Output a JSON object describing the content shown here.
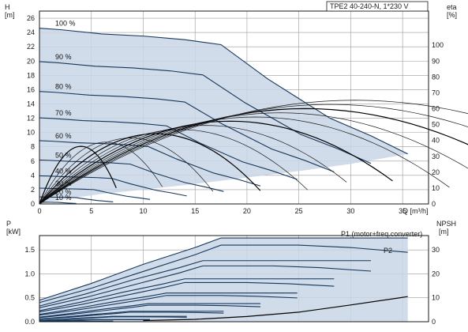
{
  "chart_data": [
    {
      "type": "line",
      "title": "TPE2 40-240-N, 1*230 V",
      "left_axis": {
        "label_line1": "H",
        "label_line2": "[m]",
        "ticks": [
          0,
          2,
          4,
          6,
          8,
          10,
          12,
          14,
          16,
          18,
          20,
          22,
          24,
          26
        ],
        "ylim": [
          0,
          27
        ]
      },
      "right_axis": {
        "label_line1": "eta",
        "label_line2": "[%]",
        "ticks": [
          0,
          10,
          20,
          30,
          40,
          50,
          60,
          70,
          80,
          90,
          100
        ],
        "ylim": [
          0,
          121.5
        ]
      },
      "x_axis": {
        "label": "Q [m³/h]",
        "ticks": [
          0,
          5,
          10,
          15,
          20,
          25,
          30,
          35
        ],
        "xlim": [
          0,
          37.5
        ]
      },
      "grid": true,
      "speed_labels": [
        "100 %",
        "90 %",
        "80 %",
        "70 %",
        "60 %",
        "50 %",
        "40 %",
        "30 %",
        "20 %",
        "10 %"
      ],
      "speed_fractions": [
        1.0,
        0.9,
        0.8,
        0.7,
        0.6,
        0.5,
        0.4,
        0.3,
        0.2,
        0.1
      ],
      "operating_envelope": {
        "upper_boundary": {
          "x": [
            0,
            2,
            6,
            10,
            14,
            17.5,
            22,
            28,
            32,
            35.5
          ],
          "y": [
            24.6,
            24.4,
            23.8,
            23.5,
            23.0,
            22.3,
            17.5,
            12,
            9.5,
            7
          ]
        },
        "lower_boundary": {
          "x": [
            0,
            1,
            3,
            6,
            10,
            15,
            20,
            25,
            30,
            35.5
          ],
          "y": [
            0,
            0.3,
            0.8,
            1.4,
            2.0,
            2.8,
            3.7,
            4.6,
            5.6,
            7
          ]
        }
      },
      "head_curves_100": {
        "x": [
          0,
          2,
          6,
          10,
          14,
          17.5,
          22,
          28,
          32,
          35.5
        ],
        "y": [
          24.6,
          24.4,
          23.8,
          23.5,
          23.0,
          22.3,
          17.5,
          12,
          9.5,
          7
        ]
      },
      "efficiency_peak": {
        "x": 22,
        "eta": 66
      }
    },
    {
      "type": "line",
      "left_axis": {
        "label_line1": "P",
        "label_line2": "[kW]",
        "ticks": [
          "0.0",
          "0.5",
          "1.0",
          "1.5"
        ],
        "ylim": [
          0,
          1.8
        ]
      },
      "right_axis": {
        "label_line1": "NPSH",
        "label_line2": "[m]",
        "ticks": [
          0,
          10,
          20,
          30
        ],
        "ylim": [
          0,
          36
        ]
      },
      "x_axis": {
        "xlim": [
          0,
          37.5
        ]
      },
      "grid": true,
      "series": [
        {
          "name": "P1 (motor+freq.converter)",
          "x": [
            0,
            5,
            10,
            15,
            17.5,
            25,
            30,
            35.5
          ],
          "y": [
            0.45,
            0.8,
            1.2,
            1.55,
            1.75,
            1.75,
            1.75,
            1.75
          ]
        },
        {
          "name": "P2",
          "x": [
            0,
            5,
            10,
            15,
            17.5,
            25,
            30,
            35.5
          ],
          "y": [
            0.4,
            0.7,
            1.05,
            1.4,
            1.6,
            1.6,
            1.55,
            1.45
          ]
        }
      ],
      "npsh": {
        "x": [
          10,
          15,
          20,
          25,
          30,
          35.5
        ],
        "y": [
          0.5,
          1.0,
          2.2,
          4,
          7,
          10.5
        ]
      }
    }
  ]
}
